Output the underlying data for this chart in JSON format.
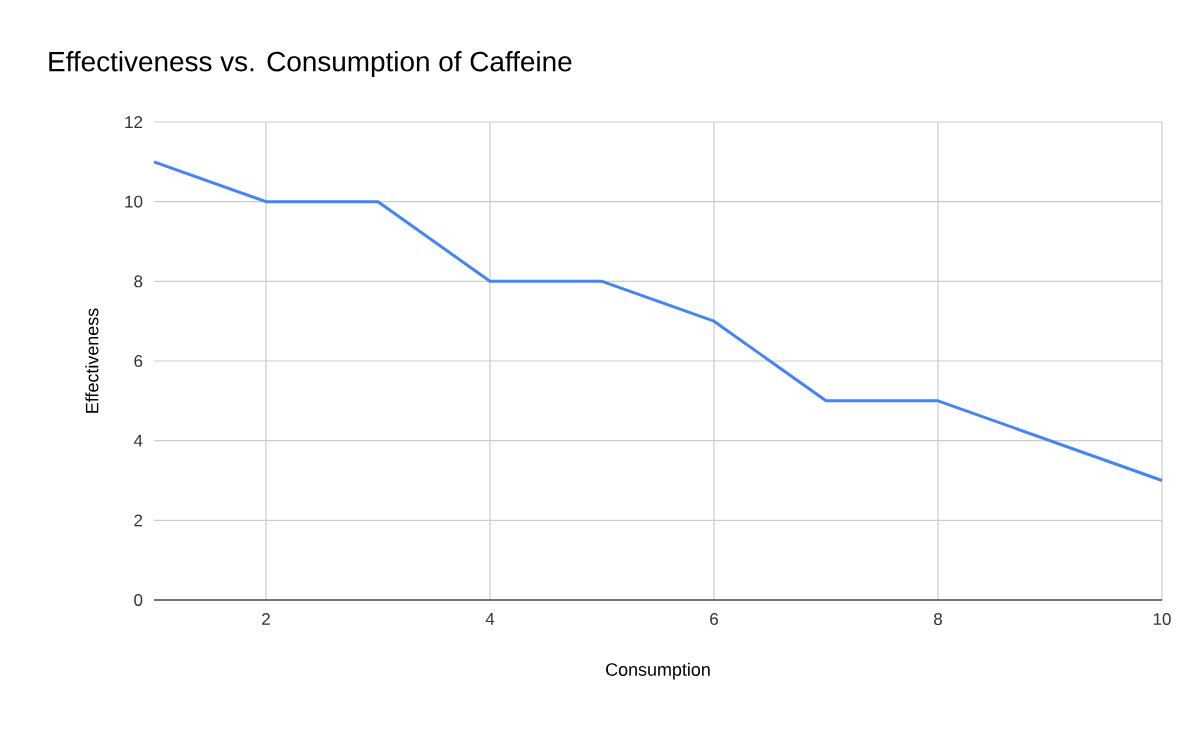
{
  "chart_data": {
    "type": "line",
    "title": "Effectiveness vs. Consumption of Caffeine",
    "xlabel": "Consumption",
    "ylabel": "Effectiveness",
    "x": [
      1,
      2,
      3,
      4,
      5,
      6,
      7,
      8,
      9,
      10
    ],
    "series": [
      {
        "color": "#4285f4",
        "values": [
          11,
          10,
          10,
          8,
          8,
          7,
          5,
          5,
          4,
          3
        ]
      }
    ],
    "xlim": [
      1,
      10
    ],
    "xticks": [
      2,
      4,
      6,
      8,
      10
    ],
    "ylim": [
      0,
      12
    ],
    "yticks": [
      0,
      2,
      4,
      6,
      8,
      10,
      12
    ],
    "grid": true,
    "marker": "none",
    "line_style": "solid"
  }
}
